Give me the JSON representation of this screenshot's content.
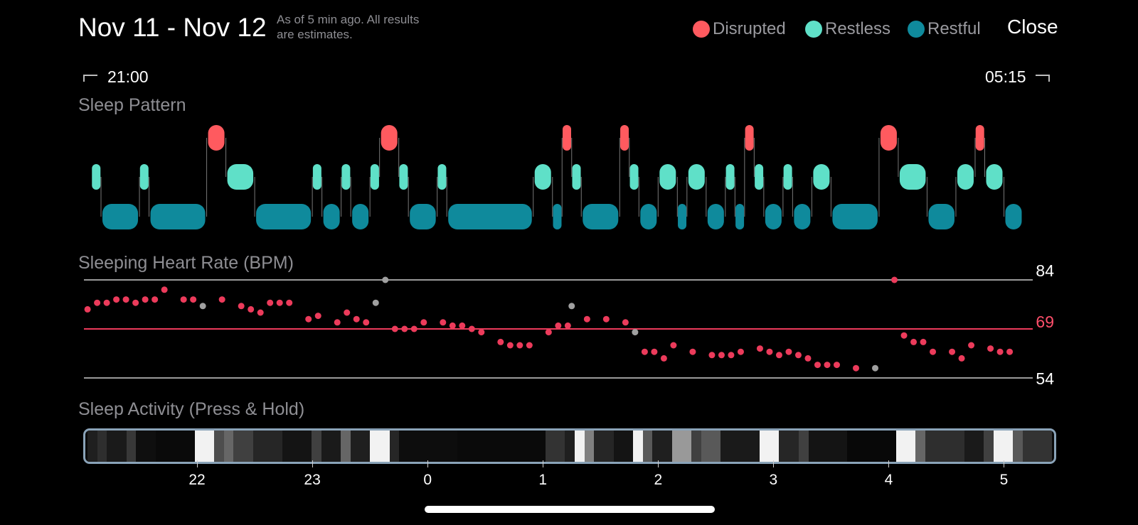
{
  "header": {
    "title": "Nov 11 - Nov 12",
    "note_line1": "As of 5 min ago. All results",
    "note_line2": "are estimates.",
    "close_label": "Close"
  },
  "legend": [
    {
      "label": "Disrupted",
      "color": "#ff5a5f"
    },
    {
      "label": "Restless",
      "color": "#5fe0c8"
    },
    {
      "label": "Restful",
      "color": "#0f8a9c"
    }
  ],
  "range": {
    "start": "21:00",
    "end": "05:15"
  },
  "sections": {
    "sleep_pattern": "Sleep Pattern",
    "heart_rate": "Sleeping Heart Rate (BPM)",
    "activity": "Sleep Activity (Press & Hold)"
  },
  "heart_rate": {
    "max": "84",
    "avg": "69",
    "min": "54"
  },
  "colors": {
    "disrupted": "#ff5a5f",
    "restless": "#5fe0c8",
    "restful": "#0f8a9c",
    "hr_dot": "#ec3b5b",
    "hr_avg_line": "#ec3b5b",
    "gray": "#a0a0a0"
  },
  "x_axis_hours": [
    "22",
    "23",
    "0",
    "1",
    "2",
    "3",
    "4",
    "5"
  ],
  "sleep_pattern_segments": [
    [
      "21:05",
      "21:10",
      "restless"
    ],
    [
      "21:10",
      "21:30",
      "restful"
    ],
    [
      "21:30",
      "21:35",
      "restless"
    ],
    [
      "21:35",
      "22:05",
      "restful"
    ],
    [
      "22:05",
      "22:15",
      "disrupted"
    ],
    [
      "22:15",
      "22:30",
      "restless"
    ],
    [
      "22:30",
      "23:00",
      "restful"
    ],
    [
      "23:00",
      "23:05",
      "restless"
    ],
    [
      "23:05",
      "23:15",
      "restful"
    ],
    [
      "23:15",
      "23:20",
      "restless"
    ],
    [
      "23:20",
      "23:30",
      "restful"
    ],
    [
      "23:30",
      "23:35",
      "restless"
    ],
    [
      "23:35",
      "23:45",
      "disrupted"
    ],
    [
      "23:45",
      "23:50",
      "restless"
    ],
    [
      "23:50",
      "00:05",
      "restful"
    ],
    [
      "00:05",
      "00:10",
      "restless"
    ],
    [
      "00:10",
      "00:55",
      "restful"
    ],
    [
      "00:55",
      "01:05",
      "restless"
    ],
    [
      "01:05",
      "01:10",
      "restful"
    ],
    [
      "01:10",
      "01:15",
      "disrupted"
    ],
    [
      "01:15",
      "01:20",
      "restless"
    ],
    [
      "01:20",
      "01:40",
      "restful"
    ],
    [
      "01:40",
      "01:45",
      "disrupted"
    ],
    [
      "01:45",
      "01:50",
      "restless"
    ],
    [
      "01:50",
      "02:00",
      "restful"
    ],
    [
      "02:00",
      "02:10",
      "restless"
    ],
    [
      "02:10",
      "02:15",
      "restful"
    ],
    [
      "02:15",
      "02:25",
      "restless"
    ],
    [
      "02:25",
      "02:35",
      "restful"
    ],
    [
      "02:35",
      "02:40",
      "restless"
    ],
    [
      "02:40",
      "02:45",
      "restful"
    ],
    [
      "02:45",
      "02:50",
      "disrupted"
    ],
    [
      "02:50",
      "02:55",
      "restless"
    ],
    [
      "02:55",
      "03:05",
      "restful"
    ],
    [
      "03:05",
      "03:10",
      "restless"
    ],
    [
      "03:10",
      "03:20",
      "restful"
    ],
    [
      "03:20",
      "03:30",
      "restless"
    ],
    [
      "03:30",
      "03:55",
      "restful"
    ],
    [
      "03:55",
      "04:05",
      "disrupted"
    ],
    [
      "04:05",
      "04:20",
      "restless"
    ],
    [
      "04:20",
      "04:35",
      "restful"
    ],
    [
      "04:35",
      "04:45",
      "restless"
    ],
    [
      "04:45",
      "04:50",
      "disrupted"
    ],
    [
      "04:50",
      "05:00",
      "restless"
    ],
    [
      "05:00",
      "05:10",
      "restful"
    ]
  ],
  "heart_rate_points": [
    [
      "21:03",
      75,
      "r"
    ],
    [
      "21:08",
      77,
      "r"
    ],
    [
      "21:13",
      77,
      "r"
    ],
    [
      "21:18",
      78,
      "r"
    ],
    [
      "21:23",
      78,
      "r"
    ],
    [
      "21:28",
      77,
      "r"
    ],
    [
      "21:33",
      78,
      "r"
    ],
    [
      "21:38",
      78,
      "r"
    ],
    [
      "21:43",
      81,
      "r"
    ],
    [
      "21:53",
      78,
      "r"
    ],
    [
      "21:58",
      78,
      "r"
    ],
    [
      "22:03",
      76,
      "g"
    ],
    [
      "22:13",
      78,
      "r"
    ],
    [
      "22:23",
      76,
      "r"
    ],
    [
      "22:28",
      75,
      "r"
    ],
    [
      "22:33",
      74,
      "r"
    ],
    [
      "22:38",
      77,
      "r"
    ],
    [
      "22:43",
      77,
      "r"
    ],
    [
      "22:48",
      77,
      "r"
    ],
    [
      "22:58",
      72,
      "r"
    ],
    [
      "23:03",
      73,
      "r"
    ],
    [
      "23:13",
      71,
      "r"
    ],
    [
      "23:18",
      74,
      "r"
    ],
    [
      "23:23",
      72,
      "r"
    ],
    [
      "23:28",
      71,
      "r"
    ],
    [
      "23:33",
      77,
      "g"
    ],
    [
      "23:38",
      84,
      "g"
    ],
    [
      "23:43",
      69,
      "r"
    ],
    [
      "23:48",
      69,
      "r"
    ],
    [
      "23:53",
      69,
      "r"
    ],
    [
      "23:58",
      71,
      "r"
    ],
    [
      "00:08",
      71,
      "r"
    ],
    [
      "00:13",
      70,
      "r"
    ],
    [
      "00:18",
      70,
      "r"
    ],
    [
      "00:23",
      69,
      "r"
    ],
    [
      "00:28",
      68,
      "r"
    ],
    [
      "00:38",
      65,
      "r"
    ],
    [
      "00:43",
      64,
      "r"
    ],
    [
      "00:48",
      64,
      "r"
    ],
    [
      "00:53",
      64,
      "r"
    ],
    [
      "01:03",
      68,
      "r"
    ],
    [
      "01:08",
      70,
      "r"
    ],
    [
      "01:13",
      70,
      "r"
    ],
    [
      "01:15",
      76,
      "g"
    ],
    [
      "01:23",
      72,
      "r"
    ],
    [
      "01:33",
      72,
      "r"
    ],
    [
      "01:43",
      71,
      "r"
    ],
    [
      "01:48",
      68,
      "g"
    ],
    [
      "01:53",
      62,
      "r"
    ],
    [
      "01:58",
      62,
      "r"
    ],
    [
      "02:03",
      60,
      "r"
    ],
    [
      "02:08",
      64,
      "r"
    ],
    [
      "02:18",
      62,
      "r"
    ],
    [
      "02:28",
      61,
      "r"
    ],
    [
      "02:33",
      61,
      "r"
    ],
    [
      "02:38",
      61,
      "r"
    ],
    [
      "02:43",
      62,
      "r"
    ],
    [
      "02:53",
      63,
      "r"
    ],
    [
      "02:58",
      62,
      "r"
    ],
    [
      "03:03",
      61,
      "r"
    ],
    [
      "03:08",
      62,
      "r"
    ],
    [
      "03:13",
      61,
      "r"
    ],
    [
      "03:18",
      60,
      "r"
    ],
    [
      "03:23",
      58,
      "r"
    ],
    [
      "03:28",
      58,
      "r"
    ],
    [
      "03:33",
      58,
      "r"
    ],
    [
      "03:43",
      57,
      "r"
    ],
    [
      "03:53",
      57,
      "g"
    ],
    [
      "04:03",
      84,
      "r"
    ],
    [
      "04:08",
      67,
      "r"
    ],
    [
      "04:13",
      65,
      "r"
    ],
    [
      "04:18",
      65,
      "r"
    ],
    [
      "04:23",
      62,
      "r"
    ],
    [
      "04:33",
      62,
      "r"
    ],
    [
      "04:38",
      60,
      "r"
    ],
    [
      "04:43",
      64,
      "r"
    ],
    [
      "04:53",
      63,
      "r"
    ],
    [
      "04:58",
      62,
      "r"
    ],
    [
      "05:03",
      62,
      "r"
    ]
  ],
  "activity_levels": [
    [
      "21:00",
      0.12
    ],
    [
      "21:05",
      0.18
    ],
    [
      "21:10",
      0.1
    ],
    [
      "21:20",
      0.22
    ],
    [
      "21:25",
      0.06
    ],
    [
      "21:35",
      0.04
    ],
    [
      "21:55",
      0.95
    ],
    [
      "22:05",
      0.3
    ],
    [
      "22:10",
      0.4
    ],
    [
      "22:15",
      0.25
    ],
    [
      "22:25",
      0.15
    ],
    [
      "22:40",
      0.08
    ],
    [
      "22:55",
      0.25
    ],
    [
      "23:00",
      0.1
    ],
    [
      "23:10",
      0.4
    ],
    [
      "23:15",
      0.12
    ],
    [
      "23:25",
      0.95
    ],
    [
      "23:35",
      0.15
    ],
    [
      "23:40",
      0.05
    ],
    [
      "00:10",
      0.04
    ],
    [
      "00:55",
      0.2
    ],
    [
      "01:05",
      0.12
    ],
    [
      "01:10",
      0.95
    ],
    [
      "01:15",
      0.5
    ],
    [
      "01:20",
      0.15
    ],
    [
      "01:30",
      0.08
    ],
    [
      "01:40",
      0.95
    ],
    [
      "01:45",
      0.35
    ],
    [
      "01:50",
      0.12
    ],
    [
      "02:00",
      0.6
    ],
    [
      "02:10",
      0.25
    ],
    [
      "02:15",
      0.35
    ],
    [
      "02:25",
      0.1
    ],
    [
      "02:45",
      0.95
    ],
    [
      "02:55",
      0.15
    ],
    [
      "03:05",
      0.25
    ],
    [
      "03:10",
      0.08
    ],
    [
      "03:30",
      0.03
    ],
    [
      "03:55",
      0.95
    ],
    [
      "04:05",
      0.4
    ],
    [
      "04:10",
      0.18
    ],
    [
      "04:30",
      0.1
    ],
    [
      "04:40",
      0.25
    ],
    [
      "04:45",
      0.95
    ],
    [
      "04:55",
      0.35
    ],
    [
      "05:00",
      0.2
    ]
  ]
}
